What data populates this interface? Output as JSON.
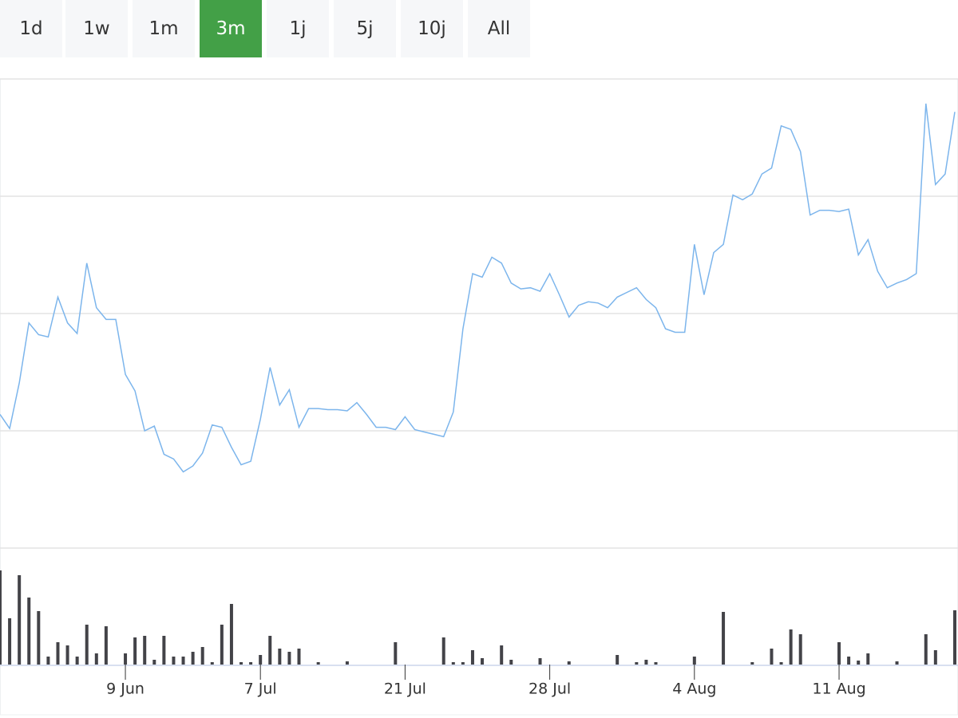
{
  "buttons": {
    "labels": [
      "1d",
      "1w",
      "1m",
      "3m",
      "1j",
      "5j",
      "10j",
      "All"
    ],
    "active_index": 3
  },
  "chart_data": {
    "type": "line",
    "grid": true,
    "ytick_labels": false,
    "ylim": [
      0,
      4
    ],
    "yticks": [
      0,
      1,
      2,
      3,
      4
    ],
    "y2lim": [
      0,
      120
    ],
    "categories": [
      null,
      null,
      null,
      null,
      null,
      null,
      null,
      null,
      null,
      null,
      null,
      null,
      null,
      "9 Jun",
      null,
      null,
      null,
      null,
      null,
      null,
      null,
      null,
      null,
      null,
      null,
      null,
      null,
      "7 Jul",
      null,
      null,
      null,
      null,
      null,
      null,
      null,
      null,
      null,
      null,
      null,
      null,
      null,
      null,
      "21 Jul",
      null,
      null,
      null,
      null,
      null,
      null,
      null,
      null,
      null,
      null,
      null,
      null,
      null,
      null,
      "28 Jul",
      null,
      null,
      null,
      null,
      null,
      null,
      null,
      null,
      null,
      null,
      null,
      null,
      null,
      null,
      "4 Aug",
      null,
      null,
      null,
      null,
      null,
      null,
      null,
      null,
      null,
      null,
      null,
      null,
      null,
      null,
      "11 Aug",
      null,
      null,
      null,
      null,
      null,
      null,
      null,
      null,
      null,
      null,
      null,
      null
    ],
    "series": [
      {
        "type": "line",
        "color": "#7cb5ec",
        "values": [
          1.14,
          1.02,
          1.41,
          1.92,
          1.82,
          1.8,
          2.14,
          1.92,
          1.83,
          2.43,
          2.05,
          1.95,
          1.95,
          1.48,
          1.34,
          1.0,
          1.04,
          0.8,
          0.76,
          0.65,
          0.7,
          0.81,
          1.05,
          1.03,
          0.86,
          0.71,
          0.74,
          1.1,
          1.54,
          1.22,
          1.35,
          1.03,
          1.19,
          1.19,
          1.18,
          1.18,
          1.17,
          1.24,
          1.14,
          1.03,
          1.03,
          1.01,
          1.12,
          1.01,
          0.99,
          0.97,
          0.95,
          1.16,
          1.87,
          2.34,
          2.31,
          2.48,
          2.43,
          2.26,
          2.21,
          2.22,
          2.19,
          2.34,
          2.16,
          1.97,
          2.07,
          2.1,
          2.09,
          2.05,
          2.14,
          2.18,
          2.22,
          2.12,
          2.05,
          1.87,
          1.84,
          1.84,
          2.59,
          2.16,
          2.52,
          2.59,
          3.01,
          2.97,
          3.02,
          3.19,
          3.24,
          3.6,
          3.57,
          3.38,
          2.84,
          2.88,
          2.88,
          2.87,
          2.89,
          2.5,
          2.63,
          2.36,
          2.22,
          2.26,
          2.29,
          2.34,
          3.79,
          3.1,
          3.19,
          3.72
        ]
      },
      {
        "type": "bar",
        "axis": "y2",
        "color": "#434348",
        "values": [
          118,
          58,
          112,
          84,
          67,
          10,
          28,
          24,
          10,
          50,
          14,
          48,
          0,
          14,
          34,
          36,
          6,
          36,
          10,
          10,
          16,
          22,
          3,
          50,
          76,
          3,
          3,
          12,
          36,
          20,
          16,
          20,
          0,
          3,
          0,
          0,
          4,
          0,
          0,
          0,
          0,
          28,
          0,
          0,
          0,
          0,
          34,
          3,
          3,
          18,
          8,
          0,
          24,
          6,
          0,
          0,
          8,
          0,
          0,
          4,
          0,
          0,
          0,
          0,
          12,
          0,
          3,
          6,
          3,
          0,
          0,
          0,
          10,
          0,
          0,
          66,
          0,
          0,
          3,
          0,
          20,
          3,
          44,
          38,
          0,
          0,
          0,
          28,
          10,
          5,
          14,
          0,
          0,
          4,
          0,
          0,
          38,
          18,
          0,
          68
        ]
      }
    ]
  }
}
